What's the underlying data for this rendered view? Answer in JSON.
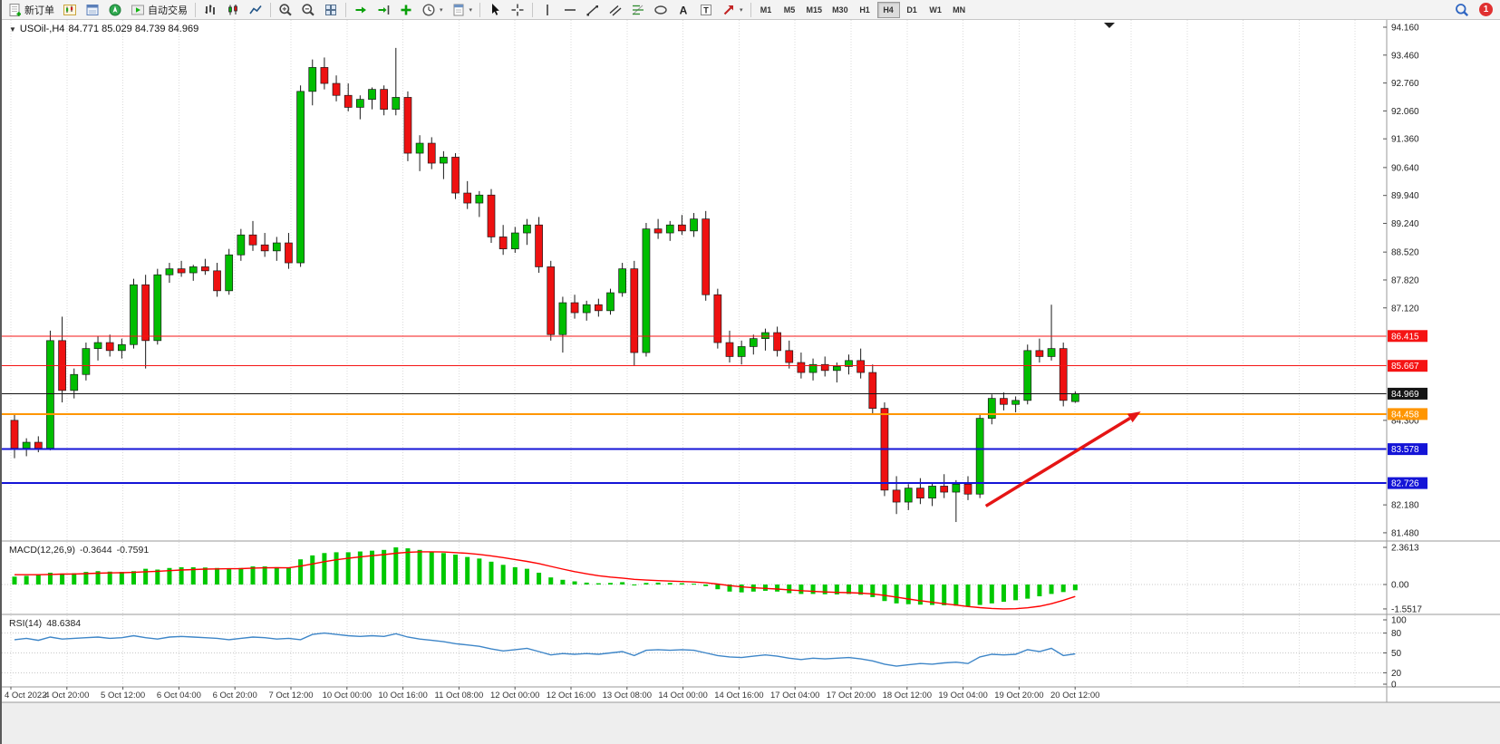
{
  "glyphs": {
    "triangle_down": "▼",
    "caret": "▾"
  },
  "toolbar": {
    "new_order_label": "新订单",
    "autotrading_label": "自动交易",
    "timeframes": [
      "M1",
      "M5",
      "M15",
      "M30",
      "H1",
      "H4",
      "D1",
      "W1",
      "MN"
    ],
    "active_timeframe": "H4",
    "notification_count": "1",
    "icon_names": [
      "new-order",
      "new-chart",
      "market-watch",
      "navigator",
      "autotrading",
      "bar-chart",
      "candlestick-chart",
      "line-chart",
      "zoom-in",
      "zoom-out",
      "tile-windows",
      "auto-scroll",
      "chart-shift",
      "indicators-add",
      "periods",
      "templates",
      "cursor",
      "crosshair",
      "vertical-line",
      "horizontal-line",
      "trend-line",
      "channel",
      "fibonacci",
      "shapes",
      "text",
      "text-label",
      "arrow-tools",
      "search",
      "notification"
    ]
  },
  "chart": {
    "title_symbol": "USOil-,H4",
    "title_ohlc": "84.771 85.029 84.739 84.969"
  },
  "chart_data": {
    "type": "candlestick",
    "symbol": "USOil-",
    "timeframe": "H4",
    "current_ohlc": {
      "open": 84.771,
      "high": 85.029,
      "low": 84.739,
      "close": 84.969
    },
    "price_axis": {
      "min": 81.48,
      "max": 94.16,
      "plain_labels": [
        {
          "v": 94.16,
          "t": "94.160"
        },
        {
          "v": 93.46,
          "t": "93.460"
        },
        {
          "v": 92.76,
          "t": "92.760"
        },
        {
          "v": 92.06,
          "t": "92.060"
        },
        {
          "v": 91.36,
          "t": "91.360"
        },
        {
          "v": 90.64,
          "t": "90.640"
        },
        {
          "v": 89.94,
          "t": "89.940"
        },
        {
          "v": 89.24,
          "t": "89.240"
        },
        {
          "v": 88.52,
          "t": "88.520"
        },
        {
          "v": 87.82,
          "t": "87.820"
        },
        {
          "v": 87.12,
          "t": "87.120"
        },
        {
          "v": 84.3,
          "t": "84.300"
        },
        {
          "v": 82.18,
          "t": "82.180"
        },
        {
          "v": 81.48,
          "t": "81.480"
        }
      ]
    },
    "hlines": [
      {
        "value": 86.415,
        "text": "86.415",
        "color": "#F51414",
        "width": 1
      },
      {
        "value": 85.667,
        "text": "85.667",
        "color": "#F51414",
        "width": 1
      },
      {
        "value": 84.969,
        "text": "84.969",
        "color": "#141414",
        "width": 1
      },
      {
        "value": 84.458,
        "text": "84.458",
        "color": "#FF9600",
        "width": 2
      },
      {
        "value": 83.578,
        "text": "83.578",
        "color": "#1414D7",
        "width": 2
      },
      {
        "value": 82.726,
        "text": "82.726",
        "color": "#1414D7",
        "width": 2
      }
    ],
    "time_labels": [
      "4 Oct 2022",
      "4 Oct 20:00",
      "5 Oct 12:00",
      "6 Oct 04:00",
      "6 Oct 20:00",
      "7 Oct 12:00",
      "10 Oct 00:00",
      "10 Oct 16:00",
      "11 Oct 08:00",
      "12 Oct 00:00",
      "12 Oct 16:00",
      "13 Oct 08:00",
      "14 Oct 00:00",
      "14 Oct 16:00",
      "17 Oct 04:00",
      "17 Oct 20:00",
      "18 Oct 12:00",
      "19 Oct 04:00",
      "19 Oct 20:00",
      "20 Oct 12:00"
    ],
    "candles": [
      [
        84.3,
        84.45,
        83.35,
        83.6
      ],
      [
        83.6,
        83.85,
        83.4,
        83.75
      ],
      [
        83.75,
        83.9,
        83.5,
        83.6
      ],
      [
        83.6,
        86.55,
        83.55,
        86.3
      ],
      [
        86.3,
        86.9,
        84.75,
        85.05
      ],
      [
        85.05,
        85.6,
        84.85,
        85.45
      ],
      [
        85.45,
        86.25,
        85.3,
        86.1
      ],
      [
        86.1,
        86.4,
        85.8,
        86.25
      ],
      [
        86.25,
        86.45,
        85.9,
        86.05
      ],
      [
        86.05,
        86.35,
        85.85,
        86.2
      ],
      [
        86.2,
        87.85,
        86.1,
        87.7
      ],
      [
        87.7,
        87.95,
        85.6,
        86.3
      ],
      [
        86.3,
        88.1,
        86.2,
        87.95
      ],
      [
        87.95,
        88.25,
        87.75,
        88.1
      ],
      [
        88.1,
        88.3,
        87.9,
        88.0
      ],
      [
        88.0,
        88.2,
        87.8,
        88.15
      ],
      [
        88.15,
        88.35,
        87.95,
        88.05
      ],
      [
        88.05,
        88.25,
        87.4,
        87.55
      ],
      [
        87.55,
        88.6,
        87.45,
        88.45
      ],
      [
        88.45,
        89.1,
        88.3,
        88.95
      ],
      [
        88.95,
        89.3,
        88.55,
        88.7
      ],
      [
        88.7,
        89.0,
        88.4,
        88.55
      ],
      [
        88.55,
        88.9,
        88.3,
        88.75
      ],
      [
        88.75,
        89.0,
        88.1,
        88.25
      ],
      [
        88.25,
        92.7,
        88.15,
        92.55
      ],
      [
        92.55,
        93.35,
        92.2,
        93.15
      ],
      [
        93.15,
        93.4,
        92.6,
        92.75
      ],
      [
        92.75,
        92.95,
        92.3,
        92.45
      ],
      [
        92.45,
        92.75,
        92.05,
        92.15
      ],
      [
        92.15,
        92.45,
        91.85,
        92.35
      ],
      [
        92.35,
        92.65,
        92.1,
        92.6
      ],
      [
        92.6,
        92.7,
        91.95,
        92.1
      ],
      [
        92.1,
        93.64,
        91.95,
        92.4
      ],
      [
        92.4,
        92.55,
        90.8,
        91.0
      ],
      [
        91.0,
        91.45,
        90.55,
        91.25
      ],
      [
        91.25,
        91.4,
        90.6,
        90.75
      ],
      [
        90.75,
        91.05,
        90.35,
        90.9
      ],
      [
        90.9,
        91.0,
        89.85,
        90.0
      ],
      [
        90.0,
        90.3,
        89.6,
        89.75
      ],
      [
        89.75,
        90.05,
        89.4,
        89.95
      ],
      [
        89.95,
        90.1,
        88.75,
        88.9
      ],
      [
        88.9,
        89.2,
        88.45,
        88.6
      ],
      [
        88.6,
        89.15,
        88.5,
        89.0
      ],
      [
        89.0,
        89.35,
        88.7,
        89.2
      ],
      [
        89.2,
        89.4,
        88.0,
        88.15
      ],
      [
        88.15,
        88.3,
        86.3,
        86.45
      ],
      [
        86.45,
        87.4,
        86.0,
        87.25
      ],
      [
        87.25,
        87.45,
        86.85,
        87.0
      ],
      [
        87.0,
        87.3,
        86.8,
        87.2
      ],
      [
        87.2,
        87.35,
        86.9,
        87.05
      ],
      [
        87.05,
        87.6,
        86.95,
        87.5
      ],
      [
        87.5,
        88.25,
        87.4,
        88.1
      ],
      [
        88.1,
        88.3,
        85.67,
        86.0
      ],
      [
        86.0,
        89.25,
        85.9,
        89.1
      ],
      [
        89.1,
        89.35,
        88.85,
        89.0
      ],
      [
        89.0,
        89.3,
        88.8,
        89.2
      ],
      [
        89.2,
        89.45,
        88.95,
        89.05
      ],
      [
        89.05,
        89.5,
        88.9,
        89.35
      ],
      [
        89.35,
        89.55,
        87.3,
        87.45
      ],
      [
        87.45,
        87.6,
        86.1,
        86.25
      ],
      [
        86.25,
        86.55,
        85.75,
        85.9
      ],
      [
        85.9,
        86.3,
        85.7,
        86.15
      ],
      [
        86.15,
        86.45,
        85.95,
        86.35
      ],
      [
        86.35,
        86.6,
        86.05,
        86.5
      ],
      [
        86.5,
        86.65,
        85.9,
        86.05
      ],
      [
        86.05,
        86.3,
        85.6,
        85.75
      ],
      [
        85.75,
        86.0,
        85.35,
        85.5
      ],
      [
        85.5,
        85.85,
        85.3,
        85.7
      ],
      [
        85.7,
        85.9,
        85.4,
        85.55
      ],
      [
        85.55,
        85.75,
        85.25,
        85.65
      ],
      [
        85.65,
        85.95,
        85.45,
        85.8
      ],
      [
        85.8,
        86.1,
        85.35,
        85.5
      ],
      [
        85.5,
        85.7,
        84.45,
        84.6
      ],
      [
        84.6,
        84.75,
        82.4,
        82.55
      ],
      [
        82.55,
        82.9,
        81.95,
        82.25
      ],
      [
        82.25,
        82.7,
        82.05,
        82.6
      ],
      [
        82.6,
        82.85,
        82.2,
        82.35
      ],
      [
        82.35,
        82.75,
        82.15,
        82.65
      ],
      [
        82.65,
        82.95,
        82.35,
        82.5
      ],
      [
        82.5,
        82.8,
        81.75,
        82.7
      ],
      [
        82.7,
        82.9,
        82.3,
        82.45
      ],
      [
        82.45,
        84.45,
        82.35,
        84.35
      ],
      [
        84.35,
        84.95,
        84.2,
        84.85
      ],
      [
        84.85,
        85.0,
        84.55,
        84.7
      ],
      [
        84.7,
        84.9,
        84.5,
        84.8
      ],
      [
        84.8,
        86.2,
        84.7,
        86.05
      ],
      [
        86.05,
        86.35,
        85.75,
        85.9
      ],
      [
        85.9,
        87.2,
        85.8,
        86.1
      ],
      [
        86.1,
        86.25,
        84.65,
        84.8
      ],
      [
        84.771,
        85.029,
        84.739,
        84.969
      ]
    ],
    "macd": {
      "label": "MACD(12,26,9)",
      "main_value": "-0.3644",
      "signal_value": "-0.7591",
      "axis_labels": [
        {
          "v": 2.3613,
          "t": "2.3613"
        },
        {
          "v": 0,
          "t": "0.00"
        },
        {
          "v": -1.5517,
          "t": "-1.5517"
        }
      ],
      "histogram": [
        0.5,
        0.55,
        0.6,
        0.75,
        0.7,
        0.72,
        0.8,
        0.85,
        0.82,
        0.8,
        0.85,
        1.0,
        0.95,
        1.05,
        1.1,
        1.1,
        1.08,
        1.05,
        1.0,
        1.05,
        1.15,
        1.15,
        1.1,
        1.05,
        1.6,
        1.85,
        2.0,
        2.05,
        2.05,
        2.1,
        2.15,
        2.2,
        2.36,
        2.3,
        2.2,
        2.1,
        2.0,
        1.9,
        1.75,
        1.65,
        1.45,
        1.25,
        1.1,
        1.0,
        0.75,
        0.45,
        0.3,
        0.2,
        0.12,
        0.08,
        0.1,
        0.15,
        0.0,
        0.1,
        0.12,
        0.1,
        0.08,
        0.05,
        -0.1,
        -0.3,
        -0.45,
        -0.5,
        -0.45,
        -0.4,
        -0.45,
        -0.55,
        -0.6,
        -0.6,
        -0.62,
        -0.63,
        -0.6,
        -0.65,
        -0.8,
        -1.05,
        -1.2,
        -1.25,
        -1.28,
        -1.3,
        -1.32,
        -1.35,
        -1.38,
        -1.3,
        -1.2,
        -1.1,
        -1.0,
        -0.9,
        -0.75,
        -0.6,
        -0.48,
        -0.3644
      ],
      "signal": [
        0.62,
        0.62,
        0.62,
        0.64,
        0.66,
        0.67,
        0.69,
        0.72,
        0.74,
        0.75,
        0.77,
        0.81,
        0.84,
        0.88,
        0.92,
        0.95,
        0.98,
        0.99,
        1.0,
        1.01,
        1.04,
        1.06,
        1.07,
        1.06,
        1.17,
        1.31,
        1.45,
        1.57,
        1.67,
        1.75,
        1.83,
        1.9,
        1.99,
        2.05,
        2.08,
        2.08,
        2.07,
        2.03,
        1.98,
        1.91,
        1.82,
        1.71,
        1.59,
        1.47,
        1.33,
        1.15,
        0.98,
        0.82,
        0.68,
        0.56,
        0.47,
        0.41,
        0.33,
        0.28,
        0.25,
        0.22,
        0.19,
        0.16,
        0.11,
        0.03,
        -0.07,
        -0.15,
        -0.21,
        -0.25,
        -0.29,
        -0.34,
        -0.39,
        -0.44,
        -0.47,
        -0.5,
        -0.52,
        -0.55,
        -0.6,
        -0.69,
        -0.8,
        -0.92,
        -1.03,
        -1.13,
        -1.22,
        -1.31,
        -1.4,
        -1.47,
        -1.52,
        -1.55,
        -1.54,
        -1.48,
        -1.38,
        -1.22,
        -1.0,
        -0.7591
      ]
    },
    "rsi": {
      "label": "RSI(14)",
      "value": "48.6384",
      "axis_labels": [
        {
          "v": 100,
          "t": "100"
        },
        {
          "v": 80,
          "t": "80"
        },
        {
          "v": 50,
          "t": "50"
        },
        {
          "v": 20,
          "t": "20"
        },
        {
          "v": 0,
          "t": "0"
        }
      ],
      "levels": [
        80,
        50,
        20
      ],
      "values": [
        70,
        72,
        69,
        74,
        71,
        72,
        73,
        74,
        72,
        73,
        76,
        73,
        71,
        74,
        75,
        74,
        73,
        72,
        70,
        72,
        74,
        73,
        71,
        72,
        70,
        78,
        80,
        78,
        76,
        75,
        76,
        75,
        79,
        74,
        71,
        69,
        67,
        64,
        62,
        60,
        56,
        53,
        55,
        57,
        52,
        47,
        49,
        48,
        49,
        48,
        50,
        52,
        46,
        54,
        55,
        54,
        55,
        54,
        50,
        46,
        44,
        43,
        45,
        47,
        45,
        42,
        40,
        42,
        41,
        42,
        43,
        41,
        38,
        33,
        30,
        32,
        34,
        33,
        35,
        36,
        34,
        44,
        48,
        47,
        48,
        55,
        52,
        57,
        46,
        48.6
      ]
    },
    "trend_arrow": {
      "i1": 81.5,
      "p1": 82.15,
      "i2": 94.5,
      "p2": 84.52,
      "color": "#E51515",
      "width": 3.5
    },
    "colors": {
      "up": "#00BE00",
      "down": "#EE1111",
      "wick": "#1a1a1a",
      "macd_hist": "#00C800",
      "macd_signal": "#FF0000",
      "rsi_line": "#3E86C8",
      "grid": "#DBDBDB",
      "axis_text": "#222222"
    }
  }
}
